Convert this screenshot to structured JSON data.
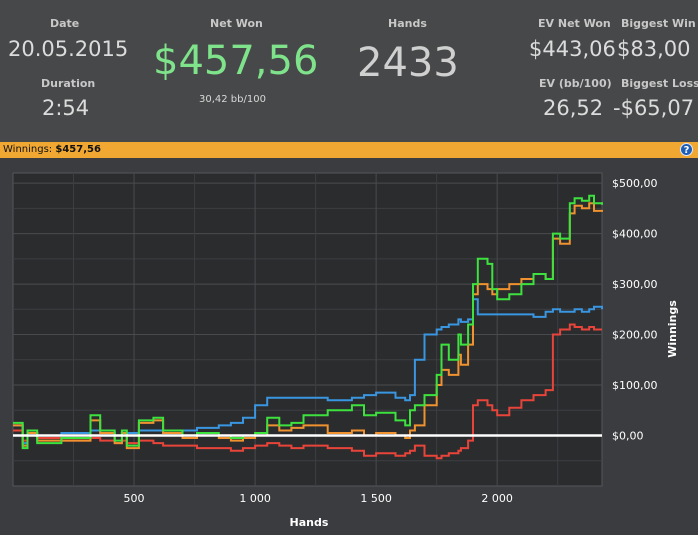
{
  "stats": {
    "date_label": "Date",
    "date_value": "20.05.2015",
    "duration_label": "Duration",
    "duration_value": "2:54",
    "netwon_label": "Net Won",
    "netwon_value": "$457,56",
    "netwon_sub": "30,42 bb/100",
    "hands_label": "Hands",
    "hands_value": "2433",
    "evnet_label": "EV Net Won",
    "evnet_value": "$443,06",
    "evbb_label": "EV (bb/100)",
    "evbb_value": "26,52",
    "bigwin_label": "Biggest Win",
    "bigwin_value": "$83,00",
    "bigloss_label": "Biggest Loss",
    "bigloss_value": "-$65,07"
  },
  "winnings_bar": {
    "label": "Winnings:",
    "value": "$457,56",
    "help_icon": "?"
  },
  "colors": {
    "green": "#3ee23e",
    "orange": "#f0922f",
    "blue": "#3a96e0",
    "red": "#e8443a",
    "zero": "#ffffff"
  },
  "chart_data": {
    "type": "line",
    "xlabel": "Hands",
    "ylabel": "Winnings",
    "xlim": [
      0,
      2433
    ],
    "ylim": [
      -100,
      520
    ],
    "x_ticks": [
      500,
      1000,
      1500,
      2000
    ],
    "x_tick_labels": [
      "500",
      "1 000",
      "1 500",
      "2 000"
    ],
    "y_ticks": [
      0,
      100,
      200,
      300,
      400,
      500
    ],
    "y_tick_labels": [
      "$0,00",
      "$100,00",
      "$200,00",
      "$300,00",
      "$400,00",
      "$500,00"
    ],
    "grid": true,
    "series": [
      {
        "color": "#3ee23e",
        "x": [
          0,
          40,
          60,
          100,
          200,
          320,
          360,
          420,
          450,
          470,
          520,
          580,
          620,
          700,
          760,
          850,
          900,
          950,
          1000,
          1050,
          1100,
          1150,
          1200,
          1300,
          1400,
          1450,
          1500,
          1580,
          1620,
          1640,
          1660,
          1700,
          1750,
          1770,
          1800,
          1840,
          1850,
          1880,
          1900,
          1920,
          1960,
          1980,
          2000,
          2050,
          2100,
          2150,
          2200,
          2230,
          2260,
          2300,
          2320,
          2350,
          2380,
          2400,
          2433
        ],
        "y": [
          25,
          -25,
          10,
          -15,
          -5,
          40,
          10,
          -10,
          10,
          -20,
          30,
          35,
          10,
          0,
          5,
          0,
          -5,
          0,
          5,
          35,
          20,
          25,
          40,
          50,
          60,
          40,
          45,
          30,
          20,
          50,
          60,
          80,
          120,
          180,
          150,
          200,
          180,
          220,
          300,
          350,
          340,
          290,
          270,
          280,
          300,
          320,
          310,
          400,
          390,
          460,
          470,
          465,
          475,
          460,
          457
        ]
      },
      {
        "color": "#f0922f",
        "x": [
          0,
          40,
          60,
          100,
          200,
          320,
          360,
          420,
          450,
          470,
          520,
          580,
          620,
          700,
          760,
          850,
          900,
          950,
          1000,
          1050,
          1100,
          1150,
          1200,
          1300,
          1400,
          1450,
          1500,
          1580,
          1620,
          1640,
          1660,
          1700,
          1750,
          1770,
          1800,
          1840,
          1850,
          1880,
          1900,
          1920,
          1960,
          1980,
          2000,
          2050,
          2100,
          2150,
          2200,
          2230,
          2260,
          2300,
          2320,
          2350,
          2380,
          2400,
          2433
        ],
        "y": [
          20,
          -20,
          5,
          -10,
          -10,
          30,
          5,
          -15,
          5,
          -25,
          25,
          30,
          5,
          -5,
          0,
          -5,
          -10,
          -5,
          0,
          20,
          10,
          15,
          20,
          5,
          10,
          0,
          5,
          0,
          -5,
          10,
          20,
          60,
          100,
          130,
          120,
          160,
          140,
          180,
          280,
          300,
          290,
          280,
          290,
          300,
          310,
          320,
          310,
          390,
          380,
          440,
          455,
          450,
          460,
          445,
          443
        ]
      },
      {
        "color": "#3a96e0",
        "x": [
          0,
          40,
          60,
          100,
          200,
          320,
          360,
          420,
          450,
          470,
          520,
          580,
          620,
          700,
          760,
          850,
          900,
          950,
          1000,
          1050,
          1100,
          1150,
          1200,
          1300,
          1400,
          1450,
          1500,
          1580,
          1620,
          1640,
          1660,
          1700,
          1750,
          1770,
          1800,
          1840,
          1850,
          1880,
          1900,
          1920,
          1960,
          1980,
          2000,
          2050,
          2100,
          2150,
          2200,
          2230,
          2260,
          2300,
          2320,
          2350,
          2380,
          2400,
          2433
        ],
        "y": [
          20,
          -15,
          5,
          0,
          5,
          10,
          5,
          0,
          5,
          5,
          10,
          10,
          5,
          10,
          15,
          20,
          25,
          35,
          60,
          75,
          75,
          75,
          75,
          70,
          75,
          80,
          85,
          75,
          70,
          80,
          150,
          200,
          210,
          215,
          220,
          230,
          225,
          230,
          270,
          240,
          240,
          240,
          240,
          240,
          240,
          235,
          245,
          250,
          245,
          245,
          250,
          245,
          250,
          255,
          250
        ]
      },
      {
        "color": "#e8443a",
        "x": [
          0,
          40,
          60,
          100,
          200,
          320,
          360,
          420,
          450,
          470,
          520,
          580,
          620,
          700,
          760,
          850,
          900,
          950,
          1000,
          1050,
          1100,
          1150,
          1200,
          1300,
          1400,
          1450,
          1500,
          1580,
          1620,
          1640,
          1660,
          1700,
          1750,
          1770,
          1800,
          1840,
          1850,
          1880,
          1900,
          1920,
          1960,
          1980,
          2000,
          2050,
          2100,
          2150,
          2200,
          2230,
          2260,
          2300,
          2320,
          2350,
          2380,
          2400,
          2433
        ],
        "y": [
          10,
          -10,
          0,
          -5,
          -10,
          -5,
          -10,
          -15,
          -10,
          -15,
          -10,
          -15,
          -20,
          -20,
          -25,
          -25,
          -30,
          -25,
          -20,
          -15,
          -20,
          -25,
          -20,
          -25,
          -30,
          -40,
          -35,
          -40,
          -35,
          -30,
          -20,
          -40,
          -45,
          -40,
          -35,
          -30,
          -25,
          -10,
          60,
          70,
          60,
          50,
          40,
          55,
          70,
          80,
          90,
          200,
          210,
          220,
          215,
          210,
          215,
          210,
          210
        ]
      }
    ]
  }
}
